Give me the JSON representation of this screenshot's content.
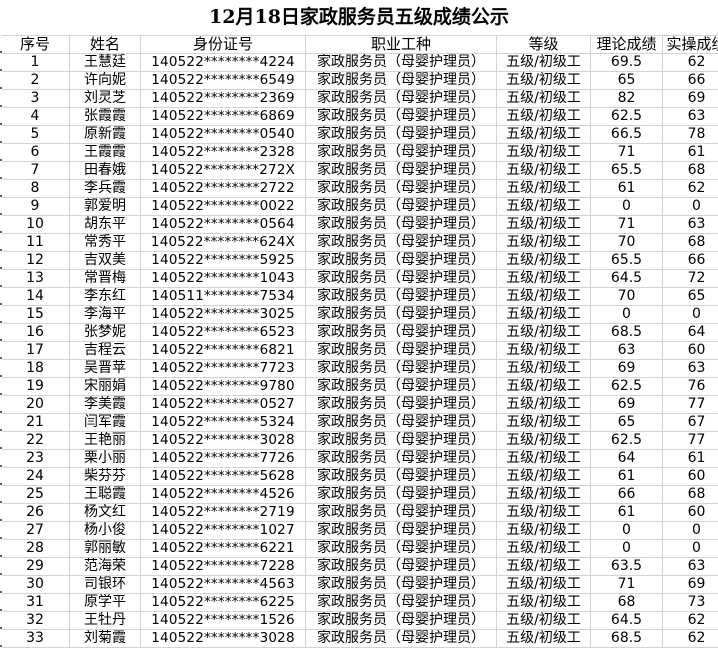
{
  "title": "12月18日家政服务员五级成绩公示",
  "columns": [
    "序号",
    "姓名",
    "身份证号",
    "职业工种",
    "等级",
    "理论成绩",
    "实操成绩"
  ],
  "rows": [
    [
      "1",
      "王慧廷",
      "140522********4224",
      "家政服务员（母婴护理员）",
      "五级/初级工",
      "69.5",
      "62"
    ],
    [
      "2",
      "许向妮",
      "140522********6549",
      "家政服务员（母婴护理员）",
      "五级/初级工",
      "65",
      "66"
    ],
    [
      "3",
      "刘灵芝",
      "140522********2369",
      "家政服务员（母婴护理员）",
      "五级/初级工",
      "82",
      "69"
    ],
    [
      "4",
      "张霞霞",
      "140522********6869",
      "家政服务员（母婴护理员）",
      "五级/初级工",
      "62.5",
      "63"
    ],
    [
      "5",
      "原新霞",
      "140522********0540",
      "家政服务员（母婴护理员）",
      "五级/初级工",
      "66.5",
      "78"
    ],
    [
      "6",
      "王霞霞",
      "140522********2328",
      "家政服务员（母婴护理员）",
      "五级/初级工",
      "71",
      "61"
    ],
    [
      "7",
      "田春娥",
      "140522********272X",
      "家政服务员（母婴护理员）",
      "五级/初级工",
      "65.5",
      "68"
    ],
    [
      "8",
      "李兵霞",
      "140522********2722",
      "家政服务员（母婴护理员）",
      "五级/初级工",
      "61",
      "62"
    ],
    [
      "9",
      "郭爱明",
      "140522********0022",
      "家政服务员（母婴护理员）",
      "五级/初级工",
      "0",
      "0"
    ],
    [
      "10",
      "胡东平",
      "140522********0564",
      "家政服务员（母婴护理员）",
      "五级/初级工",
      "71",
      "63"
    ],
    [
      "11",
      "常秀平",
      "140522********624X",
      "家政服务员（母婴护理员）",
      "五级/初级工",
      "70",
      "68"
    ],
    [
      "12",
      "吉双美",
      "140522********5925",
      "家政服务员（母婴护理员）",
      "五级/初级工",
      "65.5",
      "66"
    ],
    [
      "13",
      "常晋梅",
      "140522********1043",
      "家政服务员（母婴护理员）",
      "五级/初级工",
      "64.5",
      "72"
    ],
    [
      "14",
      "李东红",
      "140511********7534",
      "家政服务员（母婴护理员）",
      "五级/初级工",
      "70",
      "65"
    ],
    [
      "15",
      "李海平",
      "140522********3025",
      "家政服务员（母婴护理员）",
      "五级/初级工",
      "0",
      "0"
    ],
    [
      "16",
      "张梦妮",
      "140522********6523",
      "家政服务员（母婴护理员）",
      "五级/初级工",
      "68.5",
      "64"
    ],
    [
      "17",
      "吉程云",
      "140522********6821",
      "家政服务员（母婴护理员）",
      "五级/初级工",
      "63",
      "60"
    ],
    [
      "18",
      "吴晋苹",
      "140522********7723",
      "家政服务员（母婴护理员）",
      "五级/初级工",
      "69",
      "63"
    ],
    [
      "19",
      "宋丽娟",
      "140522********9780",
      "家政服务员（母婴护理员）",
      "五级/初级工",
      "62.5",
      "76"
    ],
    [
      "20",
      "李美霞",
      "140522********0527",
      "家政服务员（母婴护理员）",
      "五级/初级工",
      "69",
      "77"
    ],
    [
      "21",
      "闫军霞",
      "140522********5324",
      "家政服务员（母婴护理员）",
      "五级/初级工",
      "65",
      "67"
    ],
    [
      "22",
      "王艳丽",
      "140522********3028",
      "家政服务员（母婴护理员）",
      "五级/初级工",
      "62.5",
      "77"
    ],
    [
      "23",
      "栗小丽",
      "140522********7726",
      "家政服务员（母婴护理员）",
      "五级/初级工",
      "64",
      "61"
    ],
    [
      "24",
      "柴芬芬",
      "140522********5628",
      "家政服务员（母婴护理员）",
      "五级/初级工",
      "61",
      "60"
    ],
    [
      "25",
      "王聪霞",
      "140522********4526",
      "家政服务员（母婴护理员）",
      "五级/初级工",
      "66",
      "68"
    ],
    [
      "26",
      "杨文红",
      "140522********2719",
      "家政服务员（母婴护理员）",
      "五级/初级工",
      "61",
      "60"
    ],
    [
      "27",
      "杨小俊",
      "140522********1027",
      "家政服务员（母婴护理员）",
      "五级/初级工",
      "0",
      "0"
    ],
    [
      "28",
      "郭丽敏",
      "140522********6221",
      "家政服务员（母婴护理员）",
      "五级/初级工",
      "0",
      "0"
    ],
    [
      "29",
      "范海荣",
      "140522********7228",
      "家政服务员（母婴护理员）",
      "五级/初级工",
      "63.5",
      "63"
    ],
    [
      "30",
      "司银环",
      "140522********4563",
      "家政服务员（母婴护理员）",
      "五级/初级工",
      "71",
      "69"
    ],
    [
      "31",
      "原学平",
      "140522********6225",
      "家政服务员（母婴护理员）",
      "五级/初级工",
      "68",
      "73"
    ],
    [
      "32",
      "王牡丹",
      "140522********1526",
      "家政服务员（母婴护理员）",
      "五级/初级工",
      "64.5",
      "62"
    ],
    [
      "33",
      "刘菊霞",
      "140522********3028",
      "家政服务员（母婴护理员）",
      "五级/初级工",
      "68.5",
      "62"
    ]
  ]
}
